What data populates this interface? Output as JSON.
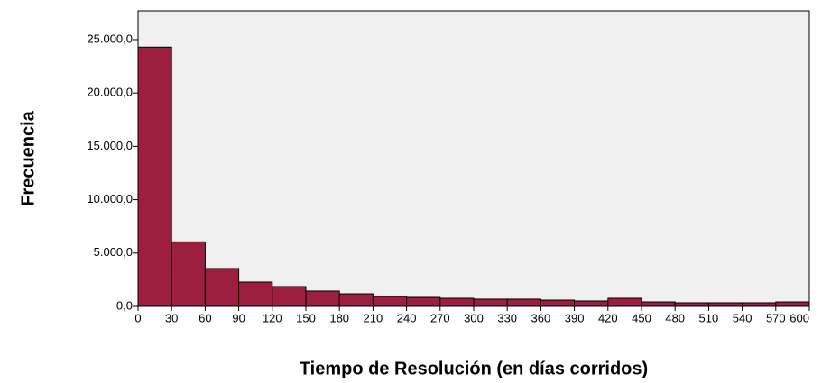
{
  "chart_data": {
    "type": "histogram",
    "xlabel": "Tiempo de Resolución (en días corridos)",
    "ylabel": "Frecuencia",
    "bins": [
      0,
      30,
      60,
      90,
      120,
      150,
      180,
      210,
      240,
      270,
      300,
      330,
      360,
      390,
      420,
      450,
      480,
      510,
      540,
      570,
      600
    ],
    "counts": [
      24300,
      6050,
      3550,
      2280,
      1860,
      1440,
      1180,
      930,
      845,
      760,
      680,
      680,
      590,
      510,
      760,
      420,
      340,
      340,
      340,
      420
    ],
    "color": "#9c1f3f",
    "xlim": [
      0,
      600
    ],
    "xticks": [
      0,
      30,
      60,
      90,
      120,
      150,
      180,
      210,
      240,
      270,
      300,
      330,
      360,
      390,
      420,
      450,
      480,
      510,
      540,
      570,
      600
    ],
    "ylim": [
      0,
      27700
    ],
    "yticks": [
      {
        "value": 0,
        "label": "0,0"
      },
      {
        "value": 5000,
        "label": "5.000,0"
      },
      {
        "value": 10000,
        "label": "10.000,0"
      },
      {
        "value": 15000,
        "label": "15.000,0"
      },
      {
        "value": 20000,
        "label": "20.000,0"
      },
      {
        "value": 25000,
        "label": "25.000,0"
      }
    ]
  }
}
